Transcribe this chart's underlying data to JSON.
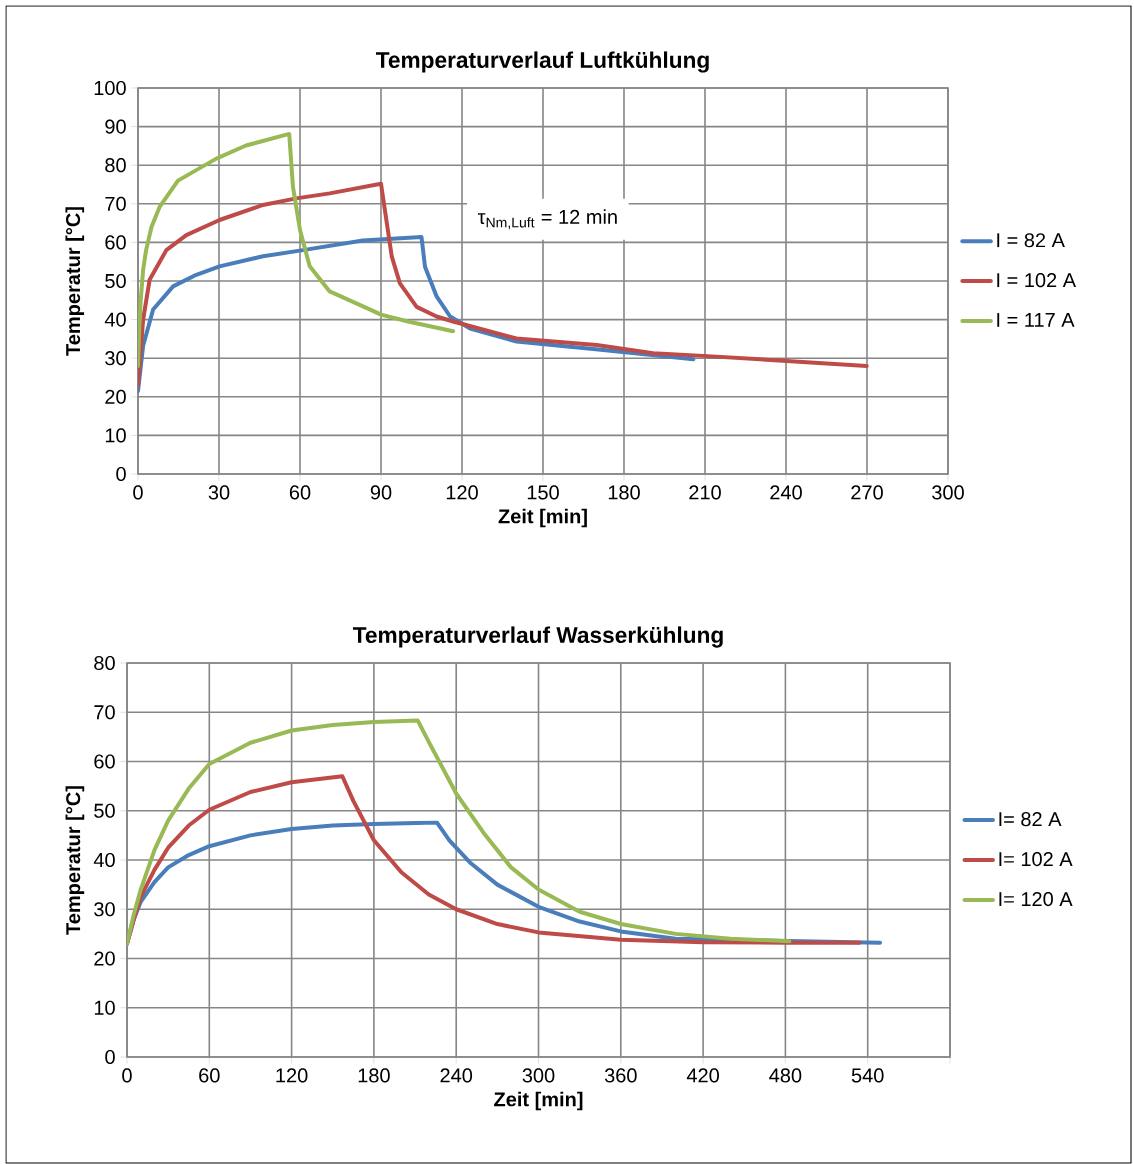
{
  "chart_data": [
    {
      "type": "line",
      "title": "Temperaturverlauf Luftkühlung",
      "xlabel": "Zeit [min]",
      "ylabel": "Temperatur [°C]",
      "xlim": [
        0,
        300
      ],
      "ylim": [
        0,
        100
      ],
      "xticks": [
        0,
        30,
        60,
        90,
        120,
        150,
        180,
        210,
        240,
        270,
        300
      ],
      "yticks": [
        0,
        10,
        20,
        30,
        40,
        50,
        60,
        70,
        80,
        90,
        100
      ],
      "grid": true,
      "legend": "right",
      "annotations": [
        "τ$_{Nm,Luft}$ = 12 min"
      ],
      "series": [
        {
          "name": "I = 82 A",
          "color": "#4a7ebb",
          "x": [
            0,
            1.9,
            5.6,
            13,
            21.6,
            30.2,
            46.3,
            61.1,
            83.3,
            105,
            106.3,
            110.6,
            115.6,
            123,
            140.2,
            172.3,
            205.7
          ],
          "values": [
            21.5,
            33.2,
            42.6,
            48.6,
            51.6,
            53.8,
            56.4,
            58,
            60.5,
            61.4,
            53.7,
            46,
            40.8,
            37.7,
            34.3,
            32.1,
            29.7
          ]
        },
        {
          "name": "I = 102 A",
          "color": "#be4b48",
          "x": [
            0,
            1.9,
            4.3,
            10.5,
            17.9,
            30.2,
            46.3,
            58.6,
            71,
            90,
            94,
            97,
            103.2,
            110.6,
            116.7,
            140.2,
            169.9,
            190.8,
            209.4,
            240.2,
            269.9
          ],
          "values": [
            22.9,
            40,
            50.3,
            58,
            61.9,
            65.8,
            69.7,
            71.4,
            72.7,
            75.2,
            56.3,
            49.4,
            43.3,
            40.8,
            39.5,
            35.1,
            33.4,
            31.3,
            30.6,
            29.3,
            28
          ]
        },
        {
          "name": "I = 117 A",
          "color": "#98b954",
          "x": [
            0,
            0.5,
            1,
            1.9,
            3,
            5,
            8,
            14.8,
            29,
            40,
            56,
            57.4,
            60,
            63.6,
            71,
            86,
            90,
            100,
            116.7
          ],
          "values": [
            28,
            38,
            45,
            52.9,
            58,
            64,
            69.2,
            76,
            81.7,
            85.1,
            88.1,
            74.4,
            63.2,
            53.8,
            47.3,
            42.6,
            41.3,
            39.5,
            37
          ]
        }
      ]
    },
    {
      "type": "line",
      "title": "Temperaturverlauf Wasserkühlung",
      "xlabel": "Zeit [min]",
      "ylabel": "Temperatur [°C]",
      "xlim": [
        0,
        600
      ],
      "ylim": [
        0,
        80
      ],
      "xticks": [
        0,
        60,
        120,
        180,
        240,
        300,
        360,
        420,
        480,
        540,
        {
          "value": 600,
          "label": null
        }
      ],
      "yticks": [
        0,
        10,
        20,
        30,
        40,
        50,
        60,
        70,
        80
      ],
      "grid": true,
      "legend": "right",
      "series": [
        {
          "name": "I= 82 A",
          "color": "#4a7ebb",
          "x": [
            0,
            5,
            10,
            20,
            30,
            45,
            60,
            90,
            120,
            150,
            180,
            226,
            235,
            250,
            270,
            300,
            330,
            360,
            400,
            450,
            500,
            549
          ],
          "values": [
            23,
            28,
            31.5,
            35.5,
            38.5,
            41,
            42.8,
            45,
            46.3,
            47,
            47.3,
            47.6,
            44,
            39.5,
            35,
            30.5,
            27.5,
            25.5,
            24,
            null,
            null,
            23.2
          ]
        },
        {
          "name": "I= 102 A",
          "color": "#be4b48",
          "x": [
            0,
            5,
            10,
            20,
            30,
            45,
            60,
            90,
            120,
            157,
            165,
            180,
            200,
            220,
            240,
            270,
            300,
            360,
            420,
            480,
            534
          ],
          "values": [
            23,
            28,
            32.5,
            38,
            42.5,
            47,
            50.2,
            53.8,
            55.8,
            57,
            52,
            44,
            37.5,
            33,
            30,
            27,
            25.3,
            23.8,
            23.3,
            23.2,
            23.2
          ]
        },
        {
          "name": "I= 120 A",
          "color": "#98b954",
          "x": [
            0,
            5,
            10,
            20,
            30,
            45,
            60,
            90,
            120,
            150,
            180,
            212,
            220,
            240,
            260,
            280,
            300,
            330,
            360,
            400,
            440,
            483
          ],
          "values": [
            23,
            29,
            34,
            42,
            48,
            54.5,
            59.5,
            63.8,
            66.3,
            67.4,
            68,
            68.3,
            64,
            53.5,
            45.5,
            38.5,
            34,
            29.5,
            27,
            25,
            24,
            23.5
          ]
        }
      ]
    }
  ]
}
